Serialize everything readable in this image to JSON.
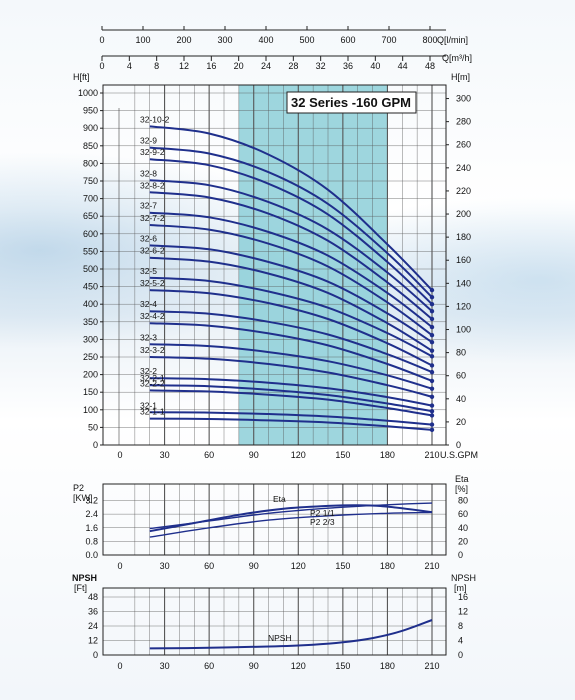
{
  "chart_data": [
    {
      "type": "line",
      "title": "32 Series -160 GPM",
      "xlabel": "U.S.GPM",
      "ylabel_left": "H[ft]",
      "ylabel_right": "H[m]",
      "x_ticks": [
        0,
        30,
        60,
        90,
        120,
        150,
        180,
        210
      ],
      "xlim": [
        0,
        220
      ],
      "ylim": [
        0,
        1050
      ],
      "y_ticks_left": [
        0,
        50,
        100,
        150,
        200,
        250,
        300,
        350,
        400,
        450,
        500,
        550,
        600,
        650,
        700,
        750,
        800,
        850,
        900,
        950,
        1000
      ],
      "y_ticks_right": [
        0,
        20,
        40,
        60,
        80,
        100,
        120,
        140,
        160,
        180,
        200,
        220,
        240,
        260,
        280,
        300
      ],
      "top_axis_q_lmin": {
        "label": "Q[l/min]",
        "ticks": [
          0,
          100,
          200,
          300,
          400,
          500,
          600,
          700,
          800
        ]
      },
      "top_axis_q_m3h": {
        "label": "Q[m³/h]",
        "ticks": [
          0,
          4,
          8,
          12,
          16,
          20,
          24,
          28,
          32,
          36,
          40,
          44,
          48
        ]
      },
      "highlight_range": [
        80,
        180
      ],
      "grid": true,
      "series": [
        {
          "name": "32-10-2",
          "x": [
            20,
            60,
            100,
            140,
            180,
            210
          ],
          "y": [
            905,
            885,
            825,
            725,
            570,
            440
          ]
        },
        {
          "name": "32-9",
          "x": [
            20,
            60,
            100,
            140,
            180,
            210
          ],
          "y": [
            845,
            828,
            775,
            685,
            545,
            420
          ]
        },
        {
          "name": "32-9-2",
          "x": [
            20,
            60,
            100,
            140,
            180,
            210
          ],
          "y": [
            812,
            795,
            742,
            655,
            520,
            400
          ]
        },
        {
          "name": "32-8",
          "x": [
            20,
            60,
            100,
            140,
            180,
            210
          ],
          "y": [
            752,
            738,
            690,
            612,
            490,
            380
          ]
        },
        {
          "name": "32-8-2",
          "x": [
            20,
            60,
            100,
            140,
            180,
            210
          ],
          "y": [
            718,
            703,
            657,
            580,
            462,
            358
          ]
        },
        {
          "name": "32-7",
          "x": [
            20,
            60,
            100,
            140,
            180,
            210
          ],
          "y": [
            660,
            647,
            605,
            538,
            432,
            335
          ]
        },
        {
          "name": "32-7-2",
          "x": [
            20,
            60,
            100,
            140,
            180,
            210
          ],
          "y": [
            625,
            612,
            572,
            507,
            405,
            312
          ]
        },
        {
          "name": "32-6",
          "x": [
            20,
            60,
            100,
            140,
            180,
            210
          ],
          "y": [
            567,
            556,
            520,
            464,
            374,
            292
          ]
        },
        {
          "name": "32-6-2",
          "x": [
            20,
            60,
            100,
            140,
            180,
            210
          ],
          "y": [
            532,
            521,
            487,
            432,
            346,
            268
          ]
        },
        {
          "name": "32-5",
          "x": [
            20,
            60,
            100,
            140,
            180,
            210
          ],
          "y": [
            475,
            466,
            436,
            390,
            318,
            252
          ]
        },
        {
          "name": "32-5-2",
          "x": [
            20,
            60,
            100,
            140,
            180,
            210
          ],
          "y": [
            440,
            431,
            403,
            358,
            289,
            226
          ]
        },
        {
          "name": "32-4",
          "x": [
            20,
            60,
            100,
            140,
            180,
            210
          ],
          "y": [
            380,
            373,
            350,
            314,
            258,
            207
          ]
        },
        {
          "name": "32-4-2",
          "x": [
            20,
            60,
            100,
            140,
            180,
            210
          ],
          "y": [
            346,
            339,
            317,
            283,
            230,
            182
          ]
        },
        {
          "name": "32-3",
          "x": [
            20,
            60,
            100,
            140,
            180,
            210
          ],
          "y": [
            286,
            281,
            264,
            238,
            198,
            160
          ]
        },
        {
          "name": "32-3-2",
          "x": [
            20,
            60,
            100,
            140,
            180,
            210
          ],
          "y": [
            250,
            245,
            230,
            206,
            170,
            137
          ]
        },
        {
          "name": "32-2",
          "x": [
            20,
            60,
            100,
            140,
            180,
            210
          ],
          "y": [
            190,
            187,
            177,
            161,
            136,
            112
          ]
        },
        {
          "name": "32-2-1",
          "x": [
            20,
            60,
            100,
            140,
            180,
            210
          ],
          "y": [
            170,
            167,
            157,
            142,
            118,
            96
          ]
        },
        {
          "name": "32-2-2",
          "x": [
            20,
            60,
            100,
            140,
            180,
            210
          ],
          "y": [
            155,
            152,
            143,
            129,
            105,
            84
          ]
        },
        {
          "name": "32-1",
          "x": [
            20,
            60,
            100,
            140,
            180,
            210
          ],
          "y": [
            93,
            92,
            88,
            81,
            69,
            58
          ]
        },
        {
          "name": "32-1-1",
          "x": [
            20,
            60,
            100,
            140,
            180,
            210
          ],
          "y": [
            75,
            74,
            70,
            64,
            53,
            43
          ]
        }
      ]
    },
    {
      "type": "line",
      "ylabel_left": "P2 [KW]",
      "ylabel_right": "Eta [%]",
      "x_ticks": [
        0,
        30,
        60,
        90,
        120,
        150,
        180,
        210
      ],
      "y_ticks_left": [
        0.0,
        0.8,
        1.6,
        2.4,
        3.2
      ],
      "y_ticks_right": [
        0,
        20,
        40,
        60,
        80
      ],
      "grid": true,
      "series": [
        {
          "name": "Eta",
          "axis": "right",
          "x": [
            20,
            50,
            80,
            110,
            140,
            160,
            180,
            210
          ],
          "y": [
            35,
            47,
            59,
            68,
            72,
            73,
            71,
            63
          ]
        },
        {
          "name": "P2 1/1",
          "axis": "left",
          "x": [
            20,
            60,
            100,
            140,
            180,
            210
          ],
          "y": [
            1.55,
            2.0,
            2.45,
            2.75,
            2.95,
            3.05
          ]
        },
        {
          "name": "P2 2/3",
          "axis": "left",
          "x": [
            20,
            60,
            100,
            140,
            180,
            210
          ],
          "y": [
            1.05,
            1.6,
            2.05,
            2.3,
            2.45,
            2.5
          ]
        }
      ]
    },
    {
      "type": "line",
      "ylabel_left": "NPSH [Ft]",
      "ylabel_right": "NPSH [m]",
      "x_ticks": [
        0,
        30,
        60,
        90,
        120,
        150,
        180,
        210
      ],
      "y_ticks_left": [
        0,
        12,
        24,
        36,
        48
      ],
      "y_ticks_right": [
        0,
        4,
        8,
        12,
        16
      ],
      "grid": true,
      "series": [
        {
          "name": "NPSH",
          "x": [
            20,
            60,
            100,
            130,
            150,
            170,
            190,
            210
          ],
          "y": [
            5.5,
            6,
            7,
            8.5,
            10.5,
            14,
            20,
            29
          ]
        }
      ]
    }
  ],
  "colors": {
    "curve": "#1f2f8c",
    "highlight": "#8dcfd8",
    "grid": "#333333"
  }
}
